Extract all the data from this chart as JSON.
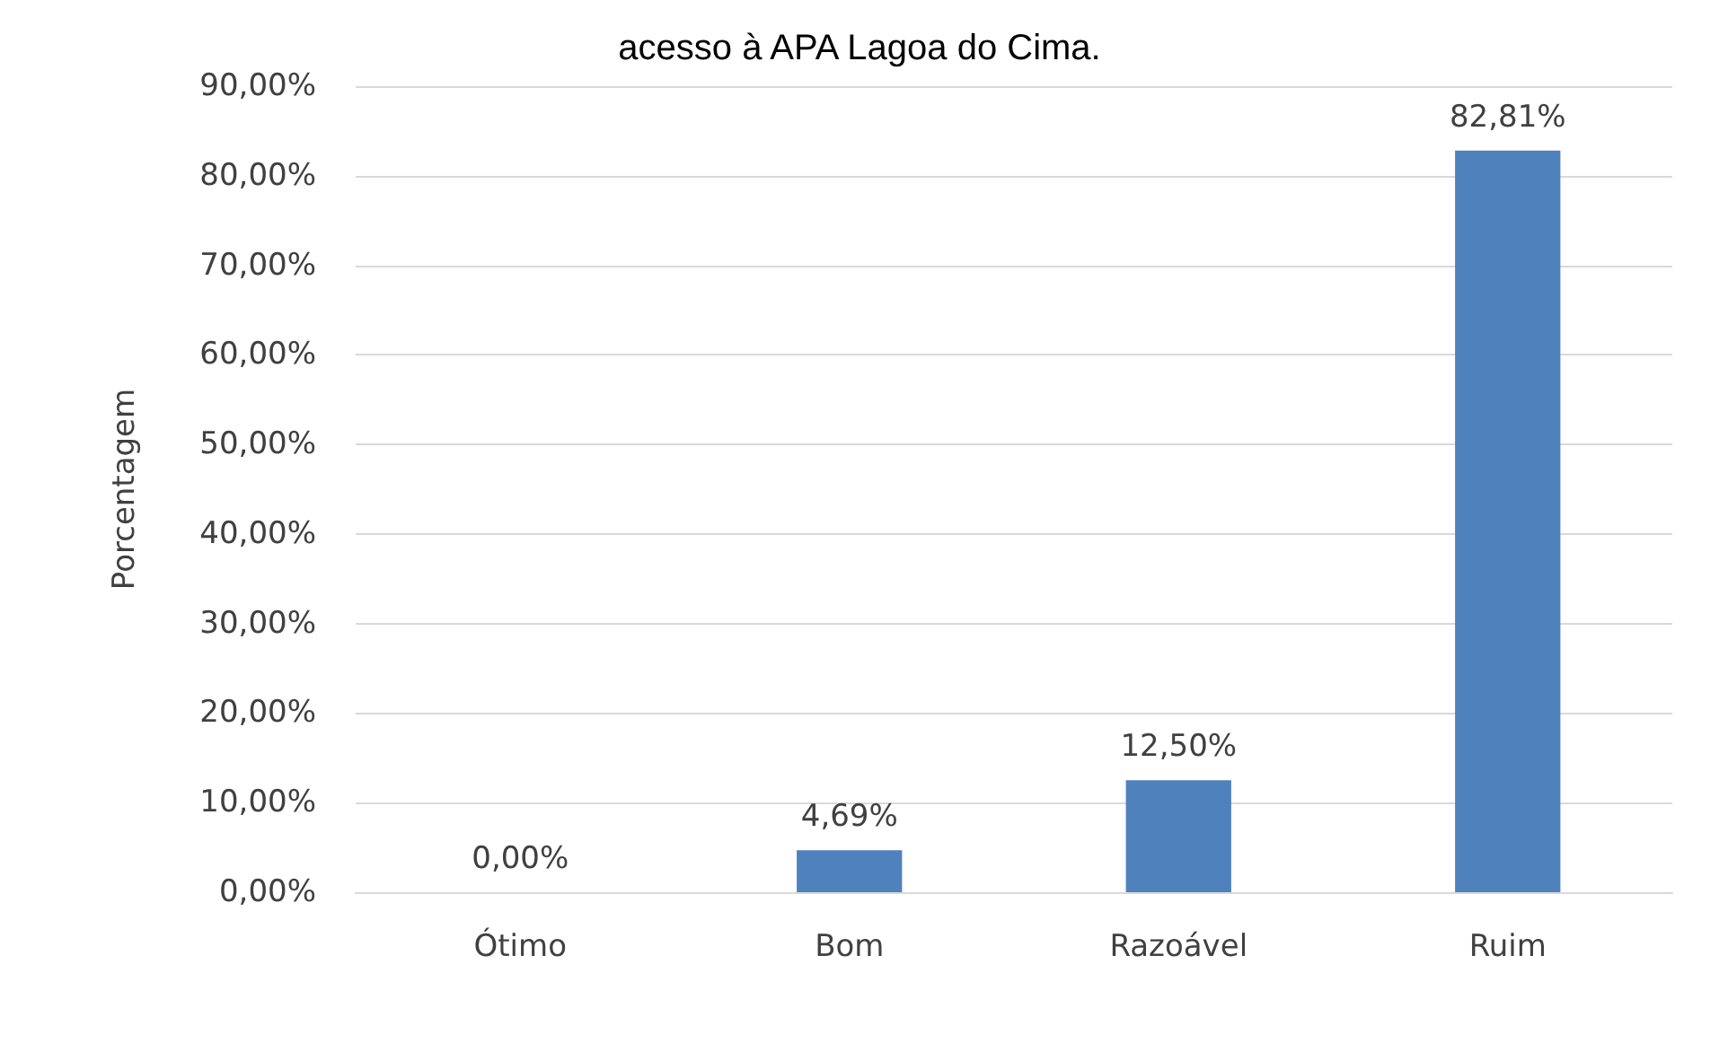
{
  "chart_data": {
    "type": "bar",
    "title": "acesso à APA Lagoa do Cima.",
    "ylabel": "Porcentagem",
    "categories": [
      "Ótimo",
      "Bom",
      "Razoável",
      "Ruim"
    ],
    "values": [
      0,
      4.69,
      12.5,
      82.81
    ],
    "value_labels": [
      "0,00%",
      "4,69%",
      "12,50%",
      "82,81%"
    ],
    "color": "#4f81bd",
    "ylim": [
      0,
      90
    ],
    "yticks": [
      {
        "value": 0,
        "label": "0,00%"
      },
      {
        "value": 10,
        "label": "10,00%"
      },
      {
        "value": 20,
        "label": "20,00%"
      },
      {
        "value": 30,
        "label": "30,00%"
      },
      {
        "value": 40,
        "label": "40,00%"
      },
      {
        "value": 50,
        "label": "50,00%"
      },
      {
        "value": 60,
        "label": "60,00%"
      },
      {
        "value": 70,
        "label": "70,00%"
      },
      {
        "value": 80,
        "label": "80,00%"
      },
      {
        "value": 90,
        "label": "90,00%"
      }
    ],
    "grid": "y"
  }
}
